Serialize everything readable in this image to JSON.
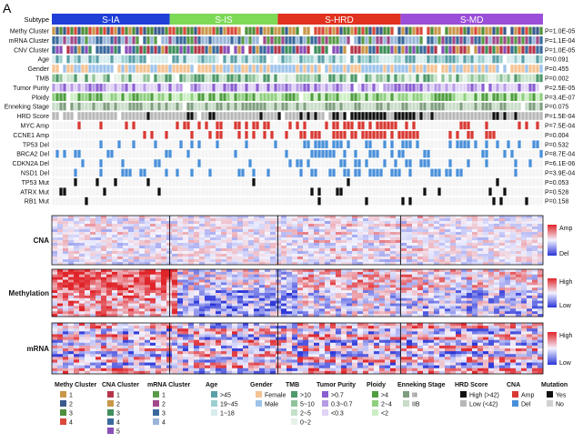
{
  "panel_letter": "A",
  "subtypes": [
    {
      "label": "S-IA",
      "color": "#1f3fd6",
      "share": 0.24
    },
    {
      "label": "S-IS",
      "color": "#7ed957",
      "share": 0.22
    },
    {
      "label": "S-HRD",
      "color": "#e0321f",
      "share": 0.25
    },
    {
      "label": "S-MD",
      "color": "#9b4fd8",
      "share": 0.29
    }
  ],
  "subtype_label": "Subtype",
  "tracks": [
    {
      "label": "Methy Cluster",
      "p": "P=1.0E-05",
      "kind": "cat"
    },
    {
      "label": "mRNA Cluster",
      "p": "P=1.1E-04",
      "kind": "cat"
    },
    {
      "label": "CNV Cluster",
      "p": "P=1.0E-05",
      "kind": "cat"
    },
    {
      "label": "Age",
      "p": "P=0.091",
      "kind": "cat"
    },
    {
      "label": "Gender",
      "p": "P=0.455",
      "kind": "cat"
    },
    {
      "label": "TMB",
      "p": "P=0.002",
      "kind": "cat"
    },
    {
      "label": "Tumor Purity",
      "p": "P=2.5E-05",
      "kind": "cat"
    },
    {
      "label": "Ploidy",
      "p": "P=3.4E-07",
      "kind": "cat"
    },
    {
      "label": "Enneking Stage",
      "p": "P=0.075",
      "kind": "cat"
    },
    {
      "label": "HRD Score",
      "p": "P=1.5E-04",
      "kind": "cat"
    },
    {
      "label": "MYC Amp",
      "p": "P=7.5E-04",
      "kind": "amp"
    },
    {
      "label": "CCNE1 Amp",
      "p": "P=0.004",
      "kind": "amp"
    },
    {
      "label": "TP53 Del",
      "p": "P=0.532",
      "kind": "del"
    },
    {
      "label": "BRCA2 Del",
      "p": "P=8.7E-04",
      "kind": "del"
    },
    {
      "label": "CDKN2A Del",
      "p": "P=6.1E-06",
      "kind": "del"
    },
    {
      "label": "NSD1 Del",
      "p": "P=3.9E-04",
      "kind": "del"
    },
    {
      "label": "TP53 Mut",
      "p": "P=0.053",
      "kind": "mut"
    },
    {
      "label": "ATRX Mut",
      "p": "P=0.528",
      "kind": "mut"
    },
    {
      "label": "RB1 Mut",
      "p": "P=0.158",
      "kind": "mut"
    }
  ],
  "heatmaps": [
    {
      "label": "CNA",
      "high": "Amp",
      "low": "Del"
    },
    {
      "label": "Methylation",
      "high": "High",
      "low": "Low"
    },
    {
      "label": "mRNA",
      "high": "High",
      "low": "Low"
    }
  ],
  "legend": [
    {
      "title": "Methy Cluster",
      "items": [
        {
          "label": "1",
          "color": "#c9974a"
        },
        {
          "label": "2",
          "color": "#3a5a8c"
        },
        {
          "label": "3",
          "color": "#4f8f3a"
        },
        {
          "label": "4",
          "color": "#d94a3a"
        }
      ]
    },
    {
      "title": "CNA Cluster",
      "items": [
        {
          "label": "1",
          "color": "#b5364b"
        },
        {
          "label": "2",
          "color": "#c9974a"
        },
        {
          "label": "3",
          "color": "#3f8f5c"
        },
        {
          "label": "4",
          "color": "#3a6a9c"
        },
        {
          "label": "5",
          "color": "#8a4fb8"
        }
      ]
    },
    {
      "title": "mRNA Cluster",
      "items": [
        {
          "label": "1",
          "color": "#5a9b4a"
        },
        {
          "label": "2",
          "color": "#a04a8a"
        },
        {
          "label": "3",
          "color": "#3a6a9c"
        },
        {
          "label": "4",
          "color": "#9ab6d8"
        }
      ]
    },
    {
      "title": "Age",
      "items": [
        {
          "label": ">45",
          "color": "#5aa0a8"
        },
        {
          "label": "19~45",
          "color": "#9ccfd0"
        },
        {
          "label": "1~18",
          "color": "#d6eced"
        }
      ]
    },
    {
      "title": "Gender",
      "items": [
        {
          "label": "Female",
          "color": "#f4c393"
        },
        {
          "label": "Male",
          "color": "#9dc3ea"
        }
      ]
    },
    {
      "title": "TMB",
      "items": [
        {
          "label": ">10",
          "color": "#4f9a6a"
        },
        {
          "label": "5~10",
          "color": "#8fc49a"
        },
        {
          "label": "2~5",
          "color": "#c5e2c9"
        },
        {
          "label": "0~2",
          "color": "#e6f2e8"
        }
      ]
    },
    {
      "title": "Tumor Purity",
      "items": [
        {
          "label": ">0.7",
          "color": "#8a5fd0"
        },
        {
          "label": "0.3~0.7",
          "color": "#b79be6"
        },
        {
          "label": "<0.3",
          "color": "#e0d3f5"
        }
      ]
    },
    {
      "title": "Ploidy",
      "items": [
        {
          "label": ">4",
          "color": "#4f9f3f"
        },
        {
          "label": "2~4",
          "color": "#8fd07f"
        },
        {
          "label": "<2",
          "color": "#cdeec4"
        }
      ]
    },
    {
      "title": "Enneking Stage",
      "items": [
        {
          "label": "III",
          "color": "#7f9f7f"
        },
        {
          "label": "IIB",
          "color": "#c8dcc8"
        }
      ]
    },
    {
      "title": "HRD Score",
      "items": [
        {
          "label": "High (>42)",
          "color": "#111111"
        },
        {
          "label": "Low (<42)",
          "color": "#b8b8b8"
        }
      ]
    },
    {
      "title": "CNA",
      "items": [
        {
          "label": "Amp",
          "color": "#d83a33"
        },
        {
          "label": "Del",
          "color": "#4a90d9"
        }
      ]
    },
    {
      "title": "Mutation",
      "items": [
        {
          "label": "Yes",
          "color": "#111111"
        },
        {
          "label": "No",
          "color": "#d0d0d0"
        }
      ]
    }
  ],
  "colors": {
    "amp": "#d83a33",
    "del": "#4a90d9",
    "mut": "#111111",
    "empty": "#f4f4f4",
    "heat_high": "#e0252a",
    "heat_low": "#2a35d8",
    "heat_mid": "#f3f3ff"
  }
}
